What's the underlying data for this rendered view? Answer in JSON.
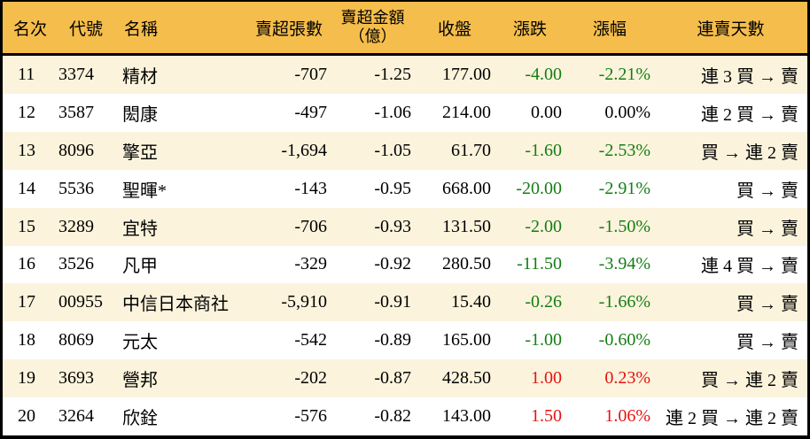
{
  "colors": {
    "header_bg": "#f5bd4b",
    "stripe_bg": "#fbf3dc",
    "row_bg": "#ffffff",
    "up_red": "#e81212",
    "down_green": "#147e14",
    "flat_black": "#000000",
    "border_black": "#000000"
  },
  "table": {
    "columns": {
      "rank": "名次",
      "code": "代號",
      "name": "名稱",
      "sell_volume": "賣超張數",
      "sell_amount_line1": "賣超金額",
      "sell_amount_line2": "（億）",
      "close": "收盤",
      "change": "漲跌",
      "change_pct": "漲幅",
      "streak": "連賣天數"
    },
    "rows": [
      {
        "rank": "11",
        "code": "3374",
        "name": "精材",
        "sell_volume": "-707",
        "sell_amount": "-1.25",
        "close": "177.00",
        "change": "-4.00",
        "change_pct": "-2.21%",
        "streak": "連 3 買 → 賣",
        "trend": "down"
      },
      {
        "rank": "12",
        "code": "3587",
        "name": "閎康",
        "sell_volume": "-497",
        "sell_amount": "-1.06",
        "close": "214.00",
        "change": "0.00",
        "change_pct": "0.00%",
        "streak": "連 2 買 → 賣",
        "trend": "flat"
      },
      {
        "rank": "13",
        "code": "8096",
        "name": "擎亞",
        "sell_volume": "-1,694",
        "sell_amount": "-1.05",
        "close": "61.70",
        "change": "-1.60",
        "change_pct": "-2.53%",
        "streak": "買 → 連 2 賣",
        "trend": "down"
      },
      {
        "rank": "14",
        "code": "5536",
        "name": "聖暉*",
        "sell_volume": "-143",
        "sell_amount": "-0.95",
        "close": "668.00",
        "change": "-20.00",
        "change_pct": "-2.91%",
        "streak": "買 → 賣",
        "trend": "down"
      },
      {
        "rank": "15",
        "code": "3289",
        "name": "宜特",
        "sell_volume": "-706",
        "sell_amount": "-0.93",
        "close": "131.50",
        "change": "-2.00",
        "change_pct": "-1.50%",
        "streak": "買 → 賣",
        "trend": "down"
      },
      {
        "rank": "16",
        "code": "3526",
        "name": "凡甲",
        "sell_volume": "-329",
        "sell_amount": "-0.92",
        "close": "280.50",
        "change": "-11.50",
        "change_pct": "-3.94%",
        "streak": "連 4 買 → 賣",
        "trend": "down"
      },
      {
        "rank": "17",
        "code": "00955",
        "name": "中信日本商社",
        "sell_volume": "-5,910",
        "sell_amount": "-0.91",
        "close": "15.40",
        "change": "-0.26",
        "change_pct": "-1.66%",
        "streak": "買 → 賣",
        "trend": "down"
      },
      {
        "rank": "18",
        "code": "8069",
        "name": "元太",
        "sell_volume": "-542",
        "sell_amount": "-0.89",
        "close": "165.00",
        "change": "-1.00",
        "change_pct": "-0.60%",
        "streak": "買 → 賣",
        "trend": "down"
      },
      {
        "rank": "19",
        "code": "3693",
        "name": "營邦",
        "sell_volume": "-202",
        "sell_amount": "-0.87",
        "close": "428.50",
        "change": "1.00",
        "change_pct": "0.23%",
        "streak": "買 → 連 2 賣",
        "trend": "up"
      },
      {
        "rank": "20",
        "code": "3264",
        "name": "欣銓",
        "sell_volume": "-576",
        "sell_amount": "-0.82",
        "close": "143.00",
        "change": "1.50",
        "change_pct": "1.06%",
        "streak": "連 2 買 → 連 2 賣",
        "trend": "up"
      }
    ]
  }
}
